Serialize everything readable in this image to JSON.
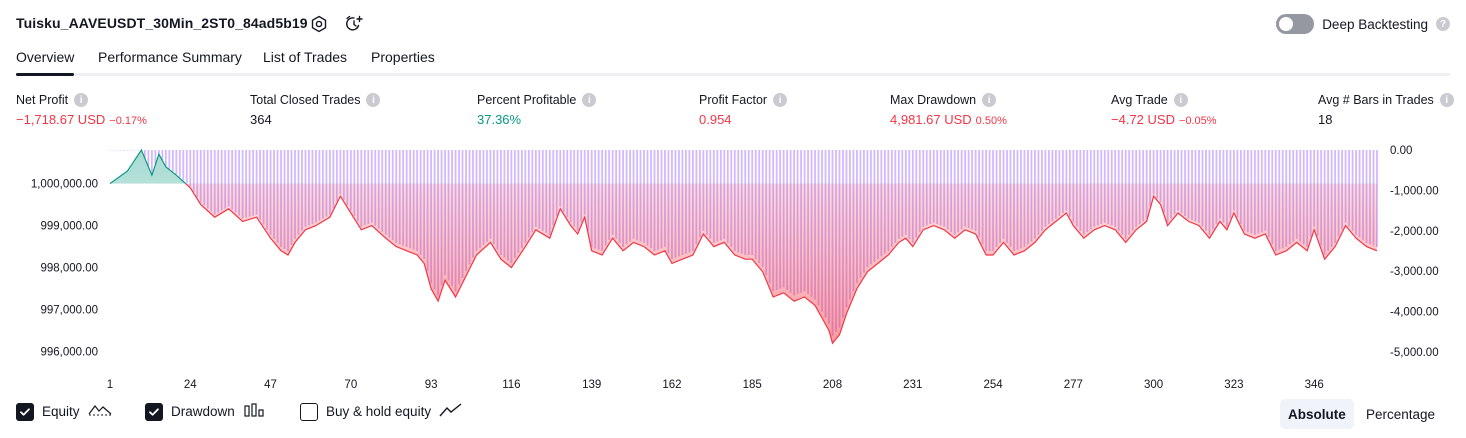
{
  "header": {
    "strategy_title": "Tuisku_AAVEUSDT_30Min_2ST0_84ad5b19",
    "deep_backtesting_label": "Deep Backtesting",
    "settings_icon": "gear-icon",
    "alert_icon": "alarm-clock-plus-icon"
  },
  "tabs": [
    {
      "label": "Overview",
      "active": true
    },
    {
      "label": "Performance Summary",
      "active": false
    },
    {
      "label": "List of Trades",
      "active": false
    },
    {
      "label": "Properties",
      "active": false
    }
  ],
  "stats": [
    {
      "label": "Net Profit",
      "value": "−1,718.67 USD",
      "pct": "−0.17%",
      "tone": "neg"
    },
    {
      "label": "Total Closed Trades",
      "value": "364",
      "pct": "",
      "tone": "neu"
    },
    {
      "label": "Percent Profitable",
      "value": "37.36%",
      "pct": "",
      "tone": "pos"
    },
    {
      "label": "Profit Factor",
      "value": "0.954",
      "pct": "",
      "tone": "neg"
    },
    {
      "label": "Max Drawdown",
      "value": "4,981.67 USD",
      "pct": "0.50%",
      "tone": "neg"
    },
    {
      "label": "Avg Trade",
      "value": "−4.72 USD",
      "pct": "−0.05%",
      "tone": "neg"
    },
    {
      "label": "Avg # Bars in Trades",
      "value": "18",
      "pct": "",
      "tone": "neu"
    }
  ],
  "legend": {
    "equity_label": "Equity",
    "drawdown_label": "Drawdown",
    "buy_hold_label": "Buy & hold equity",
    "equity_checked": true,
    "drawdown_checked": true,
    "buy_hold_checked": false
  },
  "view_toggle": {
    "absolute_label": "Absolute",
    "percentage_label": "Percentage",
    "selected": "Absolute"
  },
  "colors": {
    "equity_positive": "#089981",
    "equity_negative": "#f23645",
    "drawdown_bar": "#b388ff",
    "negative_text": "#f23645",
    "positive_text": "#089981"
  },
  "chart_data": {
    "type": "area",
    "x_tick_labels": [
      "1",
      "24",
      "47",
      "70",
      "93",
      "116",
      "139",
      "162",
      "185",
      "208",
      "231",
      "254",
      "277",
      "300",
      "323",
      "346"
    ],
    "left_axis_labels": [
      "1,000,000.00",
      "999,000.00",
      "998,000.00",
      "997,000.00",
      "996,000.00"
    ],
    "right_axis_labels": [
      "0.00",
      "-1,000.00",
      "-2,000.00",
      "-3,000.00",
      "-4,000.00",
      "-5,000.00"
    ],
    "left_ylim": [
      995800,
      1000800
    ],
    "right_ylim": [
      -5200,
      0
    ],
    "xlim": [
      1,
      364
    ],
    "initial_capital": 1000000,
    "series": [
      {
        "name": "Equity",
        "x": [
          1,
          6,
          10,
          13,
          15,
          17,
          20,
          24,
          27,
          31,
          35,
          39,
          43,
          47,
          50,
          52,
          54,
          57,
          60,
          64,
          67,
          70,
          73,
          76,
          80,
          83,
          86,
          89,
          91,
          93,
          95,
          97,
          100,
          103,
          106,
          110,
          113,
          116,
          120,
          123,
          127,
          130,
          133,
          135,
          137,
          139,
          142,
          145,
          148,
          151,
          154,
          157,
          160,
          162,
          165,
          168,
          171,
          174,
          177,
          180,
          183,
          185,
          188,
          191,
          194,
          197,
          200,
          203,
          205,
          207,
          208,
          210,
          212,
          215,
          218,
          221,
          224,
          227,
          229,
          231,
          234,
          237,
          240,
          243,
          246,
          249,
          252,
          254,
          257,
          260,
          263,
          266,
          269,
          272,
          275,
          277,
          280,
          283,
          286,
          289,
          292,
          295,
          298,
          300,
          302,
          304,
          307,
          310,
          313,
          316,
          319,
          321,
          323,
          326,
          329,
          332,
          335,
          338,
          341,
          344,
          346,
          349,
          352,
          355,
          358,
          361,
          364
        ],
        "values": [
          1000000,
          1000300,
          1000800,
          1000200,
          1000700,
          1000400,
          1000200,
          999900,
          999500,
          999200,
          999400,
          999100,
          999200,
          998700,
          998400,
          998300,
          998600,
          998900,
          999000,
          999200,
          999700,
          999300,
          998900,
          999000,
          998700,
          998500,
          998400,
          998300,
          998100,
          997500,
          997200,
          997700,
          997300,
          997800,
          998300,
          998600,
          998200,
          998000,
          998500,
          998900,
          998700,
          999400,
          999000,
          998800,
          999200,
          998400,
          998300,
          998700,
          998400,
          998600,
          998500,
          998300,
          998400,
          998100,
          998200,
          998300,
          998800,
          998500,
          998600,
          998300,
          998200,
          998200,
          997900,
          997300,
          997400,
          997200,
          997300,
          997100,
          996800,
          996500,
          996200,
          996400,
          996900,
          997500,
          997900,
          998100,
          998300,
          998600,
          998700,
          998500,
          998900,
          999000,
          998900,
          998700,
          998900,
          998800,
          998300,
          998300,
          998600,
          998300,
          998400,
          998600,
          998900,
          999100,
          999300,
          999000,
          998700,
          998900,
          999000,
          998900,
          998600,
          998900,
          999100,
          999700,
          999500,
          999000,
          999300,
          999100,
          999000,
          998700,
          999100,
          998900,
          999300,
          998800,
          998700,
          998800,
          998300,
          998400,
          998600,
          998400,
          998900,
          998200,
          998500,
          999000,
          998700,
          998500,
          998400
        ]
      },
      {
        "name": "Drawdown",
        "x": [
          1,
          6,
          10,
          13,
          15,
          17,
          20,
          24,
          27,
          31,
          35,
          39,
          43,
          47,
          50,
          52,
          54,
          57,
          60,
          64,
          67,
          70,
          73,
          76,
          80,
          83,
          86,
          89,
          91,
          93,
          95,
          97,
          100,
          103,
          106,
          110,
          113,
          116,
          120,
          123,
          127,
          130,
          133,
          135,
          137,
          139,
          142,
          145,
          148,
          151,
          154,
          157,
          160,
          162,
          165,
          168,
          171,
          174,
          177,
          180,
          183,
          185,
          188,
          191,
          194,
          197,
          200,
          203,
          205,
          207,
          208,
          210,
          212,
          215,
          218,
          221,
          224,
          227,
          229,
          231,
          234,
          237,
          240,
          243,
          246,
          249,
          252,
          254,
          257,
          260,
          263,
          266,
          269,
          272,
          275,
          277,
          280,
          283,
          286,
          289,
          292,
          295,
          298,
          300,
          302,
          304,
          307,
          310,
          313,
          316,
          319,
          321,
          323,
          326,
          329,
          332,
          335,
          338,
          341,
          344,
          346,
          349,
          352,
          355,
          358,
          361,
          364
        ],
        "values": [
          0,
          0,
          0,
          -600,
          -100,
          -400,
          -600,
          -900,
          -1300,
          -1600,
          -1400,
          -1700,
          -1600,
          -2100,
          -2400,
          -2500,
          -2200,
          -1900,
          -1800,
          -1600,
          -1100,
          -1500,
          -1900,
          -1800,
          -2100,
          -2300,
          -2400,
          -2500,
          -2700,
          -3300,
          -3600,
          -3100,
          -3500,
          -3000,
          -2500,
          -2200,
          -2600,
          -2800,
          -2300,
          -1900,
          -2100,
          -1400,
          -1800,
          -2000,
          -1600,
          -2400,
          -2500,
          -2100,
          -2400,
          -2200,
          -2300,
          -2500,
          -2400,
          -2700,
          -2600,
          -2500,
          -2000,
          -2300,
          -2200,
          -2500,
          -2600,
          -2600,
          -2900,
          -3500,
          -3400,
          -3600,
          -3500,
          -3700,
          -4000,
          -4300,
          -4600,
          -4400,
          -3900,
          -3300,
          -2900,
          -2700,
          -2500,
          -2200,
          -2100,
          -2300,
          -1900,
          -1800,
          -1900,
          -2100,
          -1900,
          -2000,
          -2500,
          -2500,
          -2200,
          -2500,
          -2400,
          -2200,
          -1900,
          -1700,
          -1500,
          -1800,
          -2100,
          -1900,
          -1800,
          -1900,
          -2200,
          -1900,
          -1700,
          -1100,
          -1300,
          -1800,
          -1500,
          -1700,
          -1800,
          -2100,
          -1700,
          -1900,
          -1500,
          -2000,
          -2100,
          -2000,
          -2500,
          -2400,
          -2200,
          -2400,
          -1900,
          -2600,
          -2300,
          -1800,
          -2100,
          -2300,
          -2400
        ]
      }
    ]
  }
}
